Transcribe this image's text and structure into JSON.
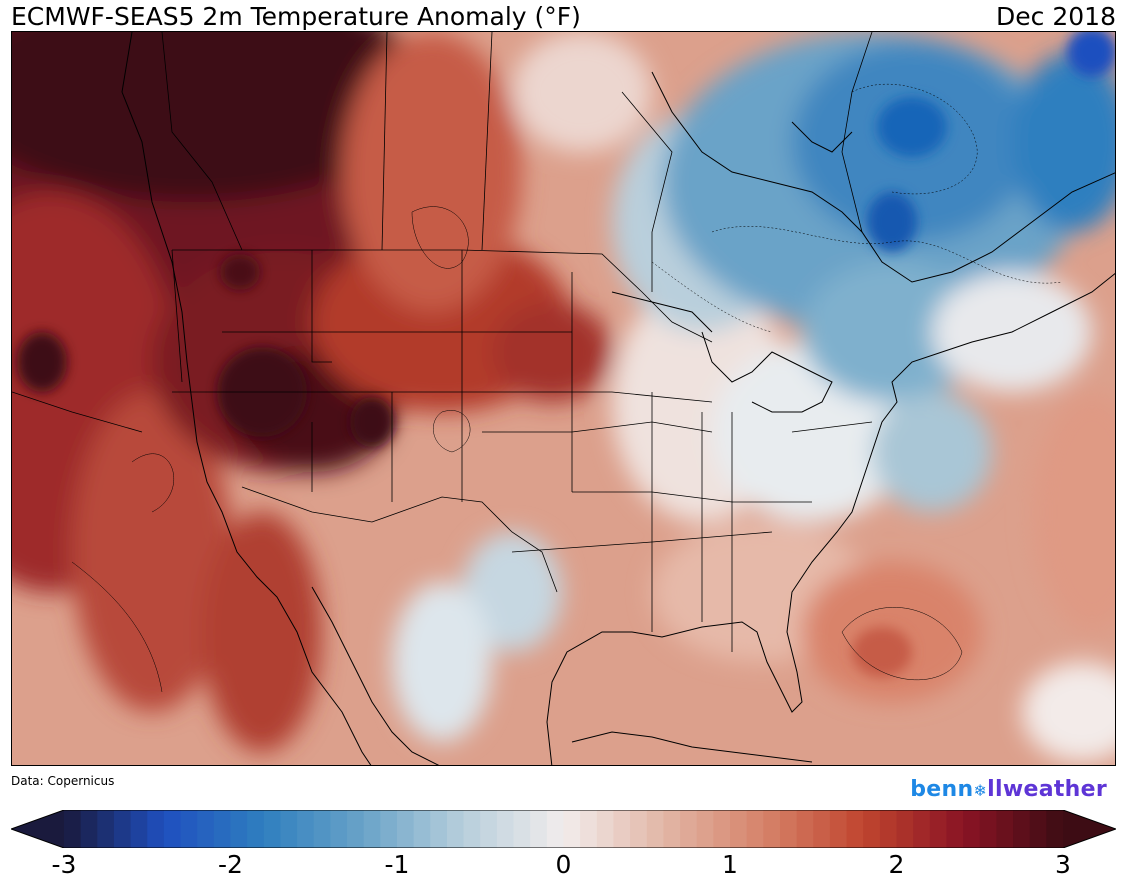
{
  "header": {
    "title": "ECMWF-SEAS5 2m Temperature Anomaly (°F)",
    "valid_period": "Dec 2018"
  },
  "footer": {
    "credit": "Data: Copernicus",
    "logo_part1": "benn",
    "logo_star": "❄",
    "logo_part2": "llweather"
  },
  "colorbar": {
    "min": -3,
    "max": 3,
    "extend": "both",
    "tick_labels": [
      "-3",
      "-2",
      "-1",
      "0",
      "1",
      "2",
      "3"
    ],
    "palette": [
      "#1a1a3d",
      "#1f4fbf",
      "#2f7fbf",
      "#6aa3c8",
      "#b7cfdc",
      "#f2ecec",
      "#e2b6a6",
      "#d6836a",
      "#c0452f",
      "#8a1424",
      "#3d0c14"
    ]
  },
  "map": {
    "variable": "2m temperature anomaly",
    "units": "°F",
    "region": "North America (CONUS, southern Canada, northern Mexico, western Atlantic, eastern Pacific)",
    "colors": {
      "strong_warm": "#4a0e16",
      "warm": "#9e2a2b",
      "mild_warm": "#d98b73",
      "near_zero": "#f2e8e6",
      "mild_cool": "#a9c6d6",
      "cool": "#4f93c2",
      "strong_cool": "#1665b8"
    }
  }
}
